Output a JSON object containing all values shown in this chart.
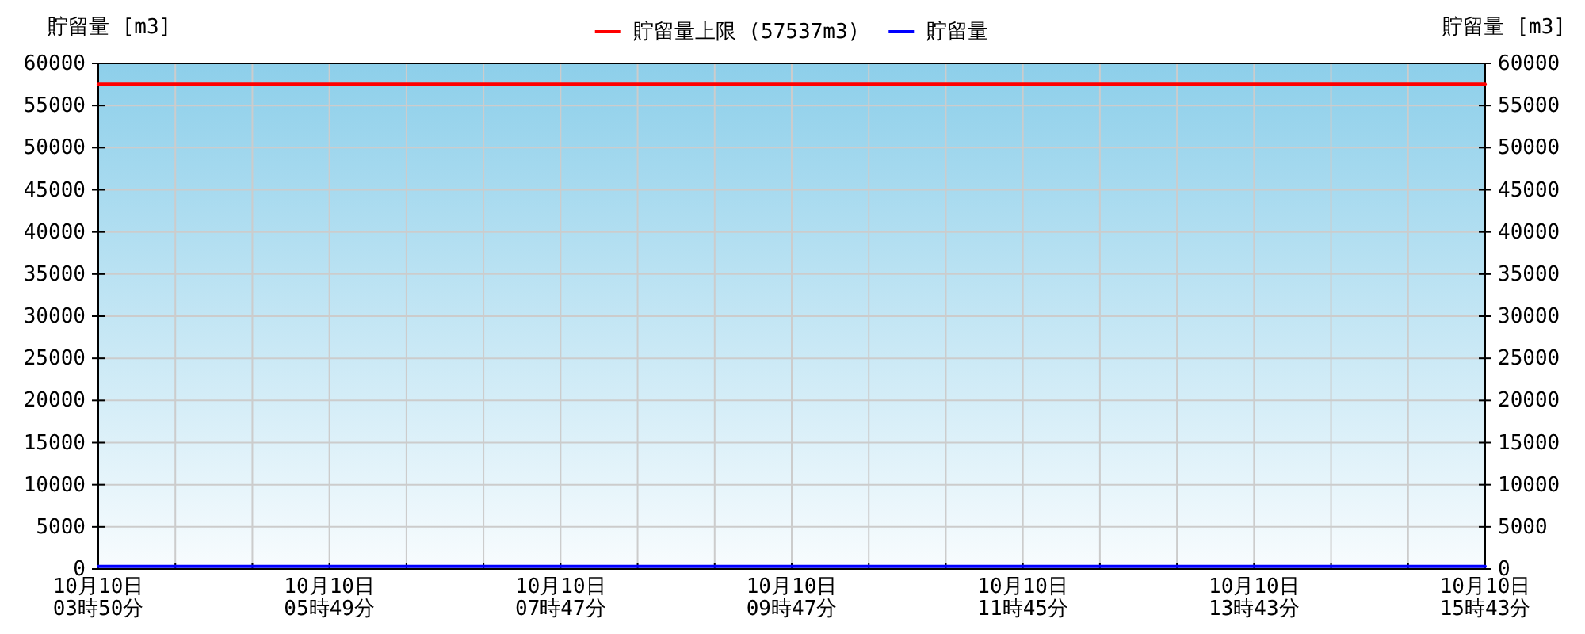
{
  "chart_data": {
    "type": "line",
    "ylabel": "貯留量 [m3]",
    "y2label": "貯留量 [m3]",
    "categories": [
      "10月10日\n03時50分",
      null,
      null,
      "10月10日\n05時49分",
      null,
      null,
      "10月10日\n07時47分",
      null,
      null,
      "10月10日\n09時47分",
      null,
      null,
      "10月10日\n11時45分",
      null,
      null,
      "10月10日\n13時43分",
      null,
      null,
      "10月10日\n15時43分"
    ],
    "series": [
      {
        "name": "貯留量上限 (57537m3)",
        "color": "#ff0000",
        "values": [
          57537,
          57537,
          57537,
          57537,
          57537,
          57537,
          57537,
          57537,
          57537,
          57537,
          57537,
          57537,
          57537,
          57537,
          57537,
          57537,
          57537,
          57537,
          57537
        ]
      },
      {
        "name": "貯留量",
        "color": "#0000ff",
        "values": [
          300,
          300,
          300,
          300,
          300,
          300,
          300,
          300,
          300,
          300,
          300,
          300,
          300,
          300,
          300,
          300,
          300,
          300,
          300
        ]
      }
    ],
    "ylim": [
      0,
      60000
    ],
    "yticks": [
      0,
      5000,
      10000,
      15000,
      20000,
      25000,
      30000,
      35000,
      40000,
      45000,
      50000,
      55000,
      60000
    ],
    "y2lim": [
      0,
      60000
    ],
    "y2ticks": [
      0,
      5000,
      10000,
      15000,
      20000,
      25000,
      30000,
      35000,
      40000,
      45000,
      50000,
      55000,
      60000
    ],
    "grid": true,
    "legend": "top",
    "marker": "none",
    "line_style": "solid"
  }
}
